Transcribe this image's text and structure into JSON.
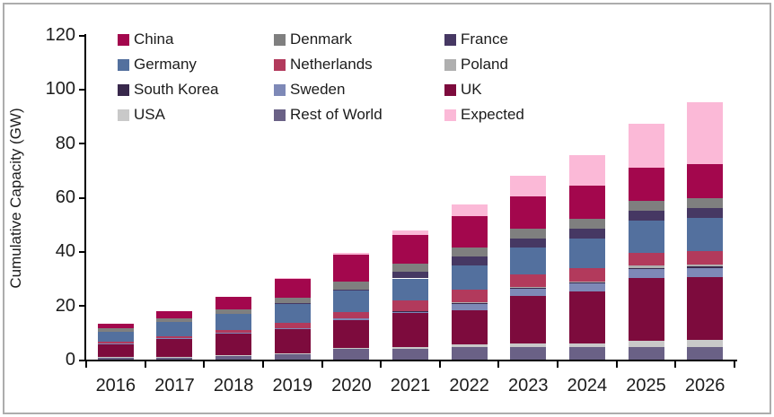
{
  "y_axis": {
    "label": "Cumulative Capacity (GW)",
    "ticks": [
      0,
      20,
      40,
      60,
      80,
      100,
      120
    ],
    "max": 120
  },
  "x_axis": {
    "labels": [
      "2016",
      "2017",
      "2018",
      "2019",
      "2020",
      "2021",
      "2022",
      "2023",
      "2024",
      "2025",
      "2026"
    ]
  },
  "chart_data": {
    "type": "bar",
    "stacked": true,
    "title": "",
    "xlabel": "",
    "ylabel": "Cumulative Capacity (GW)",
    "ylim": [
      0,
      120
    ],
    "y_tick_step": 20,
    "grid": false,
    "legend_position": "inside-top-left, 3 columns, 4 rows",
    "categories": [
      "2016",
      "2017",
      "2018",
      "2019",
      "2020",
      "2021",
      "2022",
      "2023",
      "2024",
      "2025",
      "2026"
    ],
    "series": [
      {
        "name": "China",
        "color": "#A3074D",
        "values": [
          1.7,
          2.7,
          4.6,
          7.0,
          10.0,
          10.4,
          11.8,
          12.0,
          12.2,
          12.3,
          12.4
        ]
      },
      {
        "name": "Denmark",
        "color": "#7F7F7F",
        "values": [
          1.3,
          1.3,
          1.4,
          1.9,
          3.0,
          3.2,
          3.2,
          3.5,
          3.7,
          3.7,
          3.7
        ]
      },
      {
        "name": "France",
        "color": "#463863",
        "values": [
          0,
          0,
          0,
          0.3,
          0.3,
          2.4,
          3.4,
          3.4,
          3.6,
          3.7,
          3.7
        ]
      },
      {
        "name": "Germany",
        "color": "#53709E",
        "values": [
          3.6,
          5.2,
          6.1,
          7.0,
          7.7,
          8.0,
          8.9,
          9.9,
          11.0,
          11.9,
          12.1
        ]
      },
      {
        "name": "Netherlands",
        "color": "#B23A5C",
        "values": [
          0.7,
          0.9,
          1.1,
          2.0,
          2.6,
          4.0,
          4.6,
          4.7,
          4.7,
          4.8,
          4.9
        ]
      },
      {
        "name": "Poland",
        "color": "#AFAFAF",
        "values": [
          0,
          0,
          0,
          0,
          0,
          0,
          0.3,
          0.4,
          0.5,
          0.8,
          0.9
        ]
      },
      {
        "name": "South Korea",
        "color": "#38284C",
        "values": [
          0,
          0,
          0,
          0,
          0,
          0.1,
          0.1,
          0.1,
          0.2,
          0.5,
          0.7
        ]
      },
      {
        "name": "Sweden",
        "color": "#7E89B7",
        "values": [
          0.2,
          0.2,
          0.2,
          0.2,
          0.6,
          0.7,
          2.5,
          3.0,
          3.1,
          3.3,
          3.3
        ]
      },
      {
        "name": "UK",
        "color": "#7D0B3D",
        "values": [
          4.9,
          6.6,
          8.0,
          9.0,
          10.2,
          12.4,
          12.8,
          17.5,
          19.3,
          23.1,
          23.2
        ]
      },
      {
        "name": "USA",
        "color": "#C9C9C9",
        "values": [
          0.05,
          0.05,
          0.05,
          0.05,
          0.4,
          0.8,
          0.9,
          1.1,
          1.1,
          2.2,
          2.4
        ]
      },
      {
        "name": "Rest of World",
        "color": "#6A6186",
        "values": [
          0.9,
          1.0,
          1.6,
          2.3,
          3.9,
          4.0,
          4.6,
          4.8,
          4.8,
          4.8,
          4.8
        ]
      },
      {
        "name": "Expected",
        "color": "#FBB9D7",
        "values": [
          0,
          0,
          0,
          0.4,
          0.6,
          1.8,
          4.2,
          7.5,
          11.3,
          16.0,
          23.2
        ]
      }
    ],
    "stack_order_bottom_to_top": [
      "Rest of World",
      "USA",
      "UK",
      "Sweden",
      "South Korea",
      "Poland",
      "Netherlands",
      "Germany",
      "France",
      "Denmark",
      "China",
      "Expected"
    ],
    "totals_gw": [
      13.4,
      18.0,
      23.1,
      30.2,
      39.3,
      47.8,
      57.3,
      67.9,
      75.5,
      87.1,
      95.3
    ]
  },
  "frame": {
    "border_color": "#ACACAC",
    "background": "#FFFFFF"
  }
}
